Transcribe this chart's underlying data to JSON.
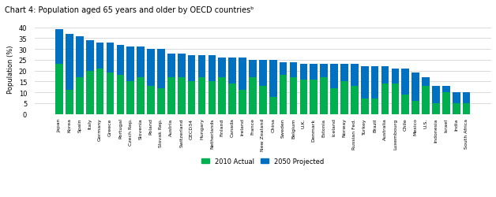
{
  "title": "Chart 4: Population aged 65 years and older by OECD countriesᵇ",
  "ylabel": "Population (%)",
  "ylim": [
    0,
    42
  ],
  "yticks": [
    0,
    5,
    10,
    15,
    20,
    25,
    30,
    35,
    40
  ],
  "legend_labels": [
    "2010 Actual",
    "2050 Projected"
  ],
  "colors": {
    "actual": "#00b050",
    "projected": "#0070c0"
  },
  "countries": [
    "Japan",
    "Korea",
    "Spain",
    "Italy",
    "Germany",
    "Greece",
    "Portugal",
    "Czech Rep.",
    "Slovenia",
    "Poland",
    "Slovak Rep.",
    "Austria",
    "Switzerland",
    "OECD34",
    "Hungary",
    "Netherlands",
    "Finland",
    "Canada",
    "Ireland",
    "France",
    "New Zealand",
    "China",
    "Sweden",
    "Belgium",
    "U.K.",
    "Denmark",
    "Estonia",
    "Iceland",
    "Norway",
    "Russian Fed.",
    "Turkey",
    "Brazil",
    "Australia",
    "Luxembourg",
    "Chile",
    "Mexico",
    "U.S.",
    "Indonesia",
    "Israel",
    "India",
    "South Africa"
  ],
  "actual_2010": [
    23,
    11,
    17,
    20,
    21,
    19,
    18,
    15,
    17,
    13,
    12,
    17,
    17,
    15,
    17,
    15,
    17,
    14,
    11,
    17,
    13,
    8,
    18,
    17,
    16,
    16,
    17,
    12,
    15,
    13,
    7,
    7,
    14,
    14,
    9,
    6,
    13,
    5,
    10,
    5,
    5
  ],
  "projected_2050": [
    39,
    37,
    36,
    34,
    33,
    33,
    32,
    31,
    31,
    30,
    30,
    28,
    28,
    27,
    27,
    27,
    26,
    26,
    26,
    25,
    25,
    25,
    24,
    24,
    23,
    23,
    23,
    23,
    23,
    23,
    22,
    22,
    22,
    21,
    21,
    19,
    17,
    13,
    13,
    10,
    10
  ]
}
